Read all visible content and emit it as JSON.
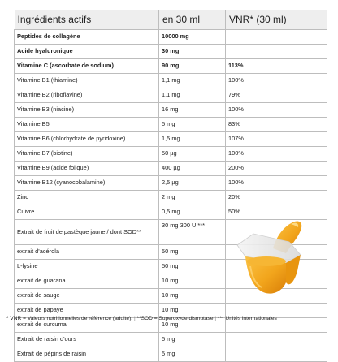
{
  "header": {
    "col1": "Ingrédients actifs",
    "col2": "en 30 ml",
    "col3": "VNR* (30 ml)"
  },
  "rows": [
    {
      "name": "Peptides de collagène",
      "amount": "10000 mg",
      "vnr": "",
      "bold": true
    },
    {
      "name": "Acide hyaluronique",
      "amount": "30 mg",
      "vnr": "",
      "bold": true
    },
    {
      "name": "Vitamine C (ascorbate de sodium)",
      "amount": "90 mg",
      "vnr": "113%",
      "bold": true
    },
    {
      "name": "Vitamine B1 (thiamine)",
      "amount": "1,1 mg",
      "vnr": "100%"
    },
    {
      "name": "Vitamine B2 (riboflavine)",
      "amount": "1,1 mg",
      "vnr": "79%"
    },
    {
      "name": "Vitamine B3 (niacine)",
      "amount": "16 mg",
      "vnr": "100%"
    },
    {
      "name": "Vitamine B5",
      "amount": "5 mg",
      "vnr": "83%"
    },
    {
      "name": "Vitamine B6 (chlorhydrate de pyridoxine)",
      "amount": "1,5 mg",
      "vnr": "107%"
    },
    {
      "name": "Vitamine B7 (biotine)",
      "amount": "50 µg",
      "vnr": "100%"
    },
    {
      "name": "Vitamine B9 (acide folique)",
      "amount": "400 µg",
      "vnr": "200%"
    },
    {
      "name": "Vitamine B12 (cyanocobalamine)",
      "amount": "2,5 µg",
      "vnr": "100%"
    },
    {
      "name": "Zinc",
      "amount": "2 mg",
      "vnr": "20%"
    },
    {
      "name": "Cuivre",
      "amount": "0,5 mg",
      "vnr": "50%"
    },
    {
      "name": "Extrait de fruit de pastèque jaune / dont SOD**",
      "amount": "30 mg 300 UI***",
      "vnr": "",
      "tall": true
    },
    {
      "name": "extrait d'acérola",
      "amount": "50 mg",
      "vnr": ""
    },
    {
      "name": "L-lysine",
      "amount": "50 mg",
      "vnr": ""
    },
    {
      "name": "extrait de guarana",
      "amount": "10 mg",
      "vnr": ""
    },
    {
      "name": "extrait de sauge",
      "amount": "10 mg",
      "vnr": ""
    },
    {
      "name": "extrait de papaye",
      "amount": "10 mg",
      "vnr": ""
    },
    {
      "name": "extrait de curcuma",
      "amount": "10 mg",
      "vnr": ""
    },
    {
      "name": "Extrait de raisin d'ours",
      "amount": "5 mg",
      "vnr": ""
    },
    {
      "name": "Extrait de pépins de raisin",
      "amount": "5 mg",
      "vnr": ""
    }
  ],
  "footer": {
    "note1": "* VNR = Valeurs nutritionnelles de référence (adulte).",
    "note2": "**SOD = Superoxyde dismutase",
    "note3": "*** Unités internationales"
  },
  "colors": {
    "header_bg": "#eeeeee",
    "grid": "#bdbdbd",
    "liquid": "#f2a51c"
  },
  "illustration": "shot-cup-with-orange-liquid"
}
